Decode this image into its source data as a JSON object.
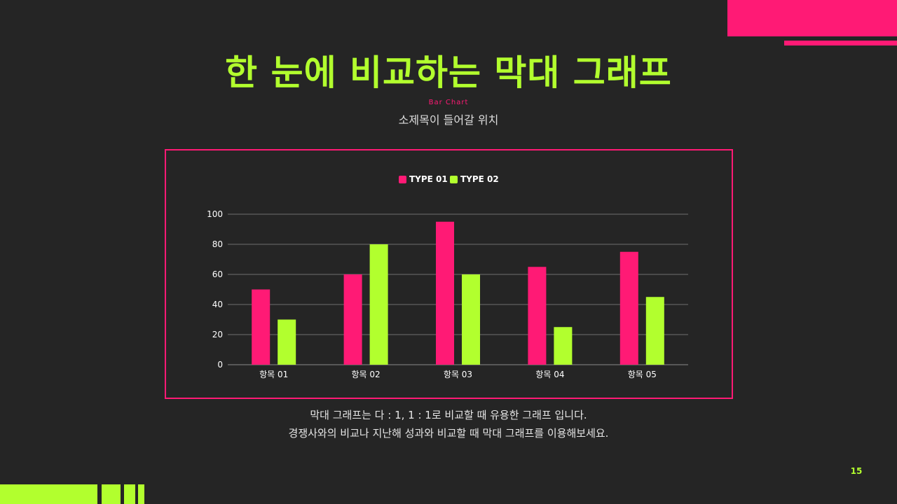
{
  "slide": {
    "title": "한 눈에 비교하는 막대 그래프",
    "label_en": "Bar Chart",
    "subtitle": "소제목이 들어갈 위치",
    "description_line1": "막대 그래프는 다 : 1, 1 : 1로 비교할 때 유용한 그래프 입니다.",
    "description_line2": "경쟁사와의 비교나 지난해 성과와 비교할 때 막대 그래프를 이용해보세요.",
    "page_number": "15"
  },
  "colors": {
    "background": "#252525",
    "accent_pink": "#FF1A75",
    "accent_green": "#B2FF2E"
  },
  "chart_data": {
    "type": "bar",
    "categories": [
      "항목 01",
      "항목 02",
      "항목 03",
      "항목 04",
      "항목 05"
    ],
    "series": [
      {
        "name": "TYPE 01",
        "values": [
          50,
          60,
          95,
          65,
          75
        ],
        "color": "#FF1A75"
      },
      {
        "name": "TYPE 02",
        "values": [
          30,
          80,
          60,
          25,
          45
        ],
        "color": "#B2FF2E"
      }
    ],
    "ylim": [
      0,
      100
    ],
    "yticks": [
      0,
      20,
      40,
      60,
      80,
      100
    ],
    "grid": true,
    "legend": "top-center"
  }
}
